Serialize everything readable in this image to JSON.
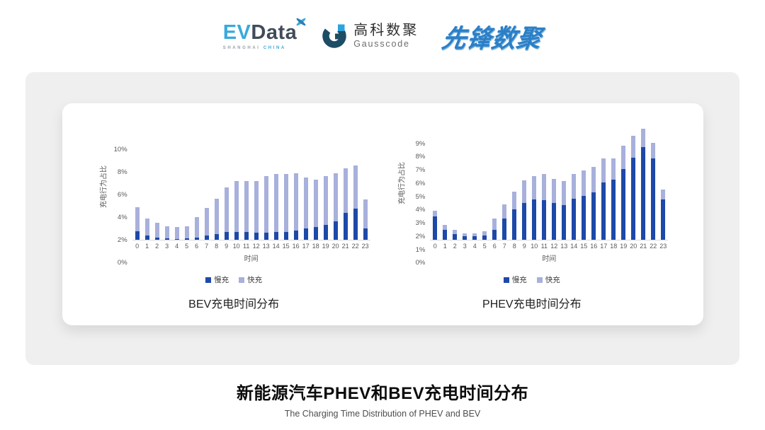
{
  "header": {
    "evdata": {
      "ev": "EV",
      "data": "Data",
      "sub1": "SHANGHAI",
      "sub2": "CHINA"
    },
    "gausscode": {
      "cn": "高科数聚",
      "en": "Gausscode"
    },
    "pioneer": {
      "text": "先锋数聚"
    }
  },
  "chart_data": [
    {
      "type": "bar",
      "stacked": true,
      "title": "BEV充电时间分布",
      "xlabel": "时间",
      "ylabel": "充电行为占比",
      "ylim": [
        0,
        10
      ],
      "yticks": [
        "10%",
        "8%",
        "6%",
        "4%",
        "2%",
        "0%"
      ],
      "grid": false,
      "legend_position": "bottom",
      "categories": [
        "0",
        "1",
        "2",
        "3",
        "4",
        "5",
        "6",
        "7",
        "8",
        "9",
        "10",
        "11",
        "12",
        "13",
        "14",
        "15",
        "16",
        "17",
        "18",
        "19",
        "20",
        "21",
        "22",
        "23"
      ],
      "series": [
        {
          "name": "慢充",
          "color": "#1D49A8",
          "values": [
            0.75,
            0.35,
            0.2,
            0.12,
            0.08,
            0.1,
            0.18,
            0.35,
            0.5,
            0.7,
            0.7,
            0.7,
            0.6,
            0.65,
            0.7,
            0.7,
            0.8,
            1.0,
            1.1,
            1.3,
            1.6,
            2.4,
            2.75,
            1.0
          ]
        },
        {
          "name": "快充",
          "color": "#A8B0DC",
          "values": [
            2.15,
            1.55,
            1.3,
            1.08,
            1.02,
            1.1,
            1.82,
            2.45,
            3.1,
            3.9,
            4.5,
            4.5,
            4.6,
            5.0,
            5.1,
            5.1,
            5.05,
            4.5,
            4.2,
            4.3,
            4.3,
            3.9,
            3.8,
            2.55
          ]
        }
      ]
    },
    {
      "type": "bar",
      "stacked": true,
      "title": "PHEV充电时间分布",
      "xlabel": "时间",
      "ylabel": "充电行为占比",
      "ylim": [
        0,
        9
      ],
      "yticks": [
        "9%",
        "8%",
        "7%",
        "6%",
        "5%",
        "4%",
        "3%",
        "2%",
        "1%",
        "0%"
      ],
      "grid": false,
      "legend_position": "bottom",
      "categories": [
        "0",
        "1",
        "2",
        "3",
        "4",
        "5",
        "6",
        "7",
        "8",
        "9",
        "10",
        "11",
        "12",
        "13",
        "14",
        "15",
        "16",
        "17",
        "18",
        "19",
        "20",
        "21",
        "22",
        "23"
      ],
      "series": [
        {
          "name": "慢充",
          "color": "#1D49A8",
          "values": [
            1.75,
            0.75,
            0.45,
            0.25,
            0.25,
            0.3,
            0.75,
            1.6,
            2.3,
            2.8,
            3.05,
            3.0,
            2.8,
            2.65,
            3.1,
            3.3,
            3.6,
            4.35,
            4.55,
            5.35,
            6.2,
            7.0,
            6.15,
            3.05
          ]
        },
        {
          "name": "快充",
          "color": "#A8B0DC",
          "values": [
            0.45,
            0.4,
            0.3,
            0.25,
            0.25,
            0.35,
            0.85,
            1.1,
            1.35,
            1.7,
            1.75,
            2.0,
            1.8,
            1.8,
            1.9,
            1.95,
            1.9,
            1.8,
            1.6,
            1.75,
            1.7,
            1.4,
            1.2,
            0.75
          ]
        }
      ]
    }
  ],
  "footer": {
    "title": "新能源汽车PHEV和BEV充电时间分布",
    "subtitle": "The Charging Time Distribution of PHEV and BEV"
  }
}
